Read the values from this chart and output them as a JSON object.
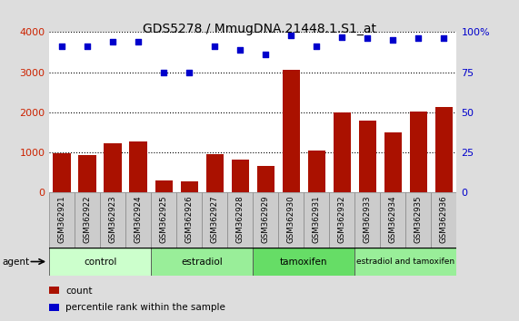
{
  "title": "GDS5278 / MmugDNA.21448.1.S1_at",
  "samples": [
    "GSM362921",
    "GSM362922",
    "GSM362923",
    "GSM362924",
    "GSM362925",
    "GSM362926",
    "GSM362927",
    "GSM362928",
    "GSM362929",
    "GSM362930",
    "GSM362931",
    "GSM362932",
    "GSM362933",
    "GSM362934",
    "GSM362935",
    "GSM362936"
  ],
  "counts": [
    980,
    940,
    1220,
    1280,
    300,
    290,
    960,
    820,
    660,
    3060,
    1040,
    2000,
    1790,
    1490,
    2010,
    2130
  ],
  "percentiles": [
    91,
    91,
    94,
    94,
    75,
    75,
    91,
    89,
    86,
    98,
    91,
    97,
    96,
    95,
    96,
    96
  ],
  "bar_color": "#aa1100",
  "dot_color": "#0000cc",
  "ylim_left": [
    0,
    4000
  ],
  "ylim_right": [
    0,
    100
  ],
  "yticks_left": [
    0,
    1000,
    2000,
    3000,
    4000
  ],
  "yticks_right": [
    0,
    25,
    50,
    75,
    100
  ],
  "groups": [
    {
      "label": "control",
      "start": 0,
      "end": 4,
      "color": "#ccffcc"
    },
    {
      "label": "estradiol",
      "start": 4,
      "end": 8,
      "color": "#99ee99"
    },
    {
      "label": "tamoxifen",
      "start": 8,
      "end": 12,
      "color": "#66dd66"
    },
    {
      "label": "estradiol and tamoxifen",
      "start": 12,
      "end": 16,
      "color": "#99ee99"
    }
  ],
  "agent_label": "agent",
  "legend_count_label": "count",
  "legend_pct_label": "percentile rank within the sample",
  "bg_color": "#dddddd",
  "plot_bg": "#ffffff",
  "title_fontsize": 10,
  "axis_color_left": "#cc2200",
  "axis_color_right": "#0000cc"
}
